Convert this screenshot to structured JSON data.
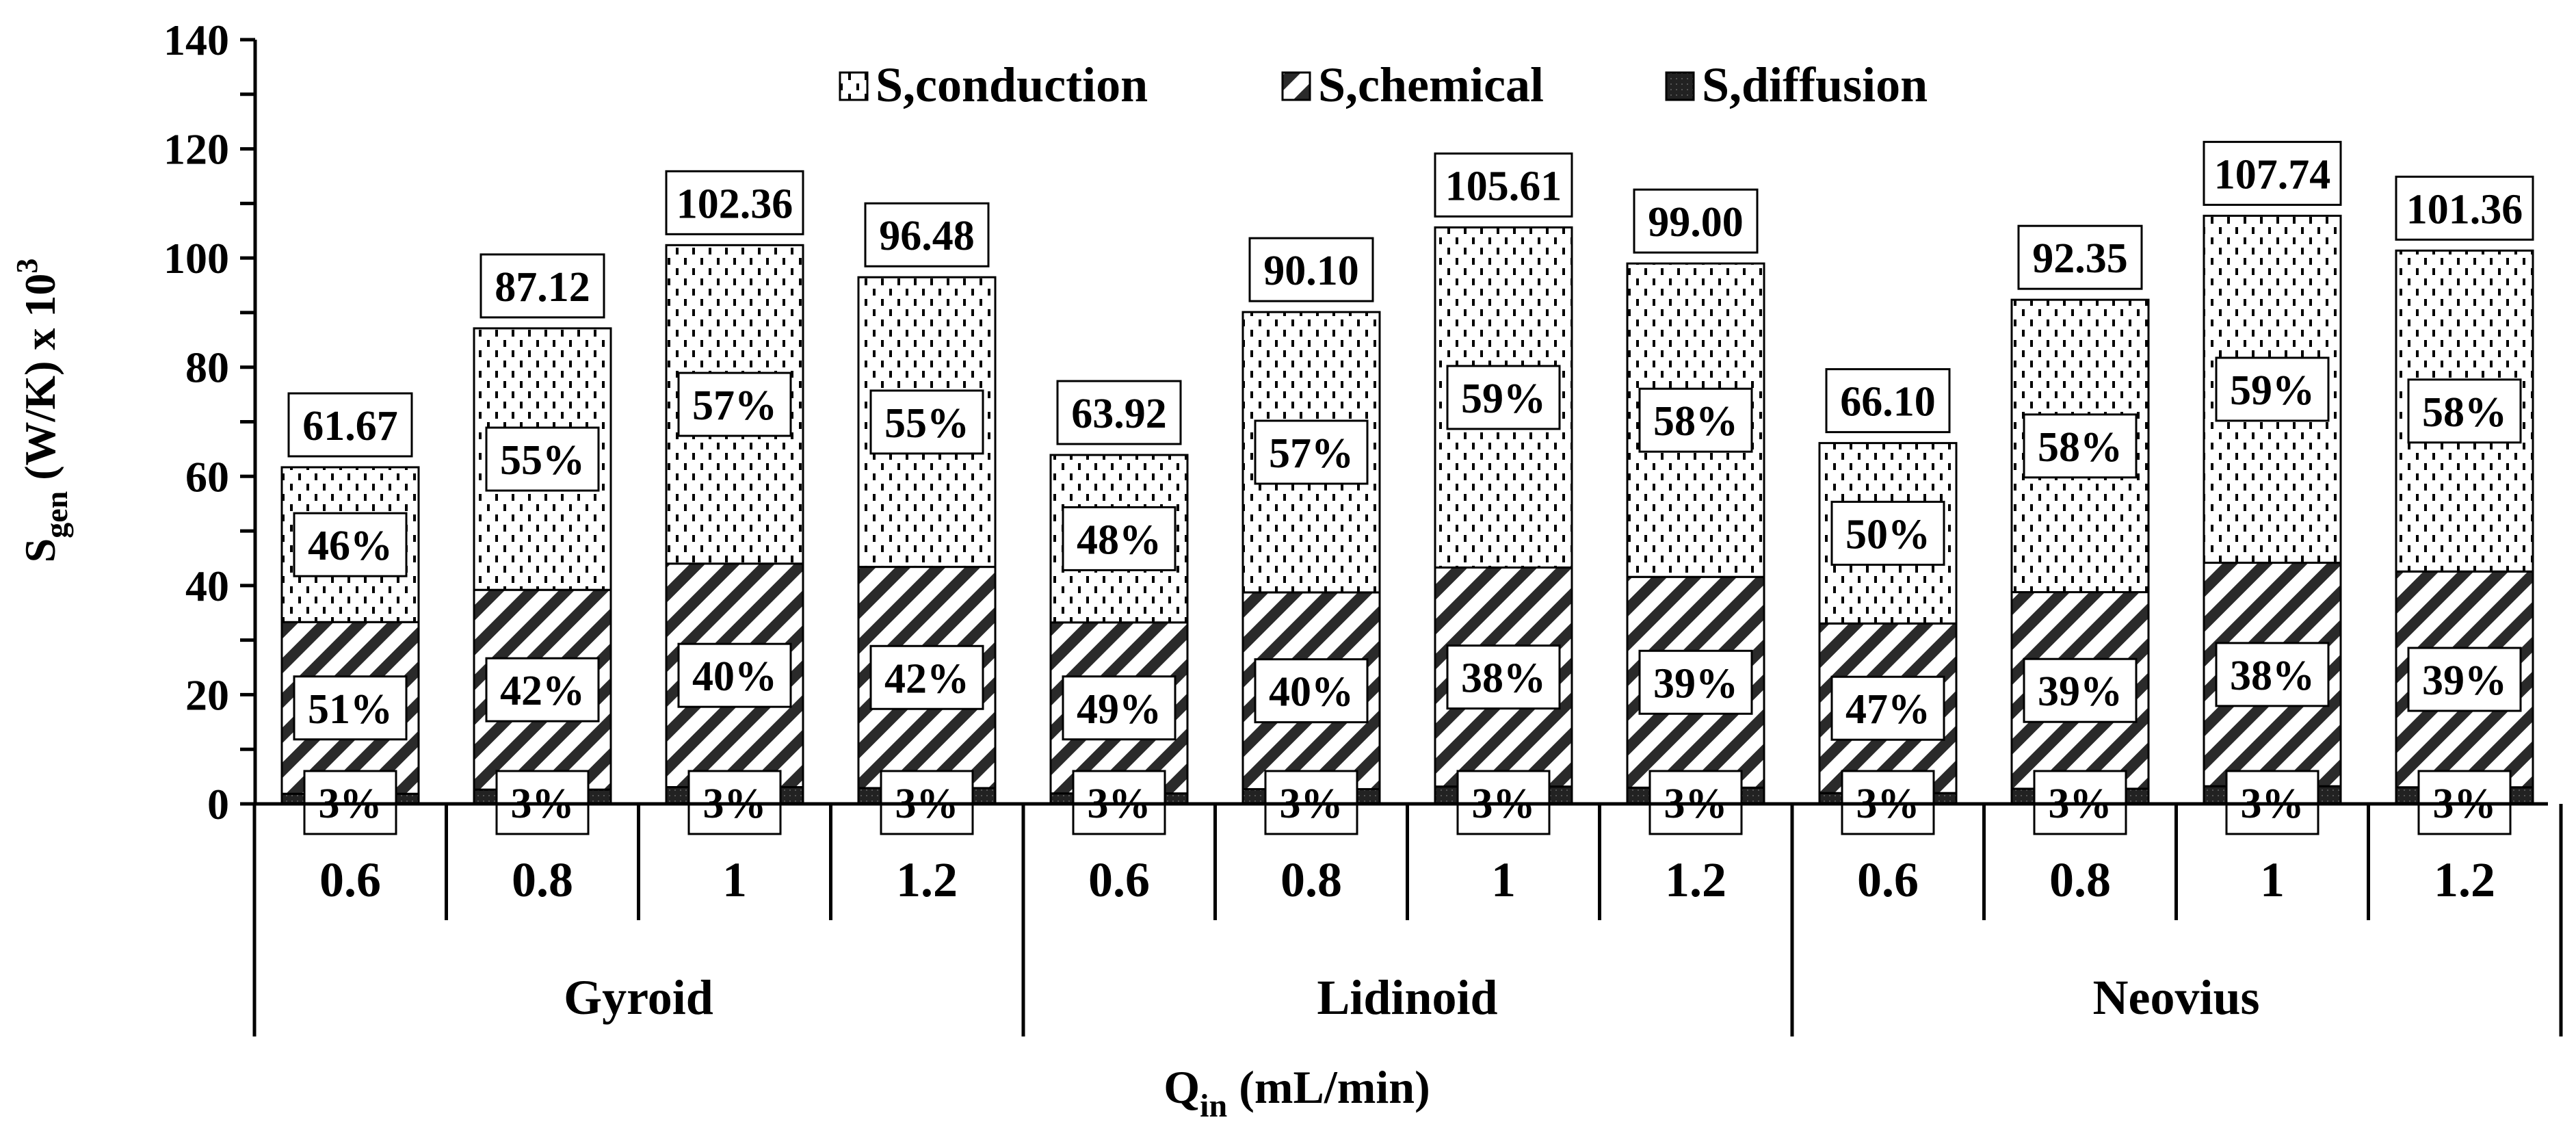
{
  "chart_data": {
    "type": "bar",
    "stacked": true,
    "title": "",
    "xlabel": {
      "main": "Q",
      "sub": "in",
      "rest": " (mL/min)"
    },
    "ylabel": {
      "main": "S",
      "sub": "gen",
      "rest": " (W/K) x 10",
      "sup": "3"
    },
    "ylim": [
      0,
      140
    ],
    "yticks": [
      "0",
      "20",
      "40",
      "60",
      "80",
      "100",
      "120",
      "140"
    ],
    "legend": {
      "position": "top",
      "items": [
        {
          "key": "conduction",
          "label": "S,conduction"
        },
        {
          "key": "chemical",
          "label": "S,chemical"
        },
        {
          "key": "diffusion",
          "label": "S,diffusion"
        }
      ]
    },
    "groups": [
      {
        "name": "Gyroid",
        "bars": [
          {
            "q": "0.6",
            "total": 61.67,
            "total_label": "61.67",
            "conduction": "46%",
            "chemical": "51%",
            "diffusion": "3%"
          },
          {
            "q": "0.8",
            "total": 87.12,
            "total_label": "87.12",
            "conduction": "55%",
            "chemical": "42%",
            "diffusion": "3%"
          },
          {
            "q": "1",
            "total": 102.36,
            "total_label": "102.36",
            "conduction": "57%",
            "chemical": "40%",
            "diffusion": "3%"
          },
          {
            "q": "1.2",
            "total": 96.48,
            "total_label": "96.48",
            "conduction": "55%",
            "chemical": "42%",
            "diffusion": "3%"
          }
        ]
      },
      {
        "name": "Lidinoid",
        "bars": [
          {
            "q": "0.6",
            "total": 63.92,
            "total_label": "63.92",
            "conduction": "48%",
            "chemical": "49%",
            "diffusion": "3%"
          },
          {
            "q": "0.8",
            "total": 90.1,
            "total_label": "90.10",
            "conduction": "57%",
            "chemical": "40%",
            "diffusion": "3%"
          },
          {
            "q": "1",
            "total": 105.61,
            "total_label": "105.61",
            "conduction": "59%",
            "chemical": "38%",
            "diffusion": "3%"
          },
          {
            "q": "1.2",
            "total": 99.0,
            "total_label": "99.00",
            "conduction": "58%",
            "chemical": "39%",
            "diffusion": "3%"
          }
        ]
      },
      {
        "name": "Neovius",
        "bars": [
          {
            "q": "0.6",
            "total": 66.1,
            "total_label": "66.10",
            "conduction": "50%",
            "chemical": "47%",
            "diffusion": "3%"
          },
          {
            "q": "0.8",
            "total": 92.35,
            "total_label": "92.35",
            "conduction": "58%",
            "chemical": "39%",
            "diffusion": "3%"
          },
          {
            "q": "1",
            "total": 107.74,
            "total_label": "107.74",
            "conduction": "59%",
            "chemical": "38%",
            "diffusion": "3%"
          },
          {
            "q": "1.2",
            "total": 101.36,
            "total_label": "101.36",
            "conduction": "58%",
            "chemical": "39%",
            "diffusion": "3%"
          }
        ]
      }
    ]
  }
}
